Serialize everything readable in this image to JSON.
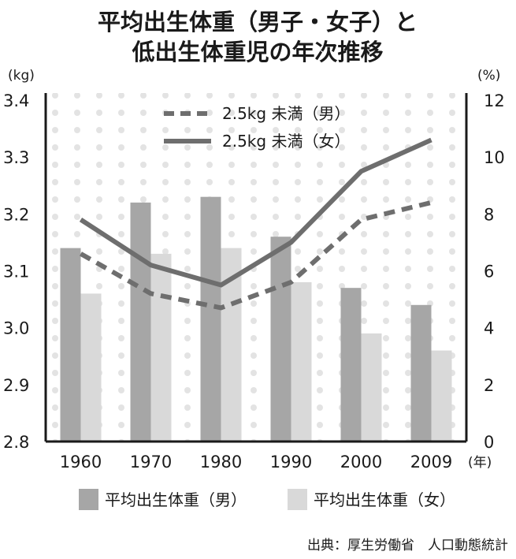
{
  "chart_data": {
    "type": "bar",
    "title_lines": [
      "平均出生体重（男子・女子）と",
      "低出生体重児の年次推移"
    ],
    "categories": [
      "1960",
      "1970",
      "1980",
      "1990",
      "2000",
      "2009"
    ],
    "x_unit": "(年)",
    "y_left": {
      "unit": "(kg)",
      "min": 2.8,
      "max": 3.4,
      "ticks": [
        "2.8",
        "2.9",
        "3.0",
        "3.1",
        "3.2",
        "3.3",
        "3.4"
      ]
    },
    "y_right": {
      "unit": "(%)",
      "min": 0,
      "max": 12,
      "ticks": [
        "0",
        "2",
        "4",
        "6",
        "8",
        "10",
        "12"
      ]
    },
    "bar_series": [
      {
        "name": "平均出生体重（男）",
        "values": [
          3.14,
          3.22,
          3.23,
          3.16,
          3.07,
          3.04
        ],
        "color": "#a6a6a6"
      },
      {
        "name": "平均出生体重（女）",
        "values": [
          3.06,
          3.13,
          3.14,
          3.08,
          2.99,
          2.96
        ],
        "color": "#d9d9d9"
      }
    ],
    "line_series": [
      {
        "name": "2.5kg 未満（男）",
        "values": [
          6.6,
          5.2,
          4.7,
          5.6,
          7.8,
          8.4
        ],
        "style": "dashed",
        "color": "#6e6e6e"
      },
      {
        "name": "2.5kg 未満（女）",
        "values": [
          7.8,
          6.2,
          5.5,
          7.0,
          9.5,
          10.6
        ],
        "style": "solid",
        "color": "#6e6e6e"
      }
    ],
    "background": "dotted",
    "source": "出典：厚生労働省　人口動態統計"
  }
}
